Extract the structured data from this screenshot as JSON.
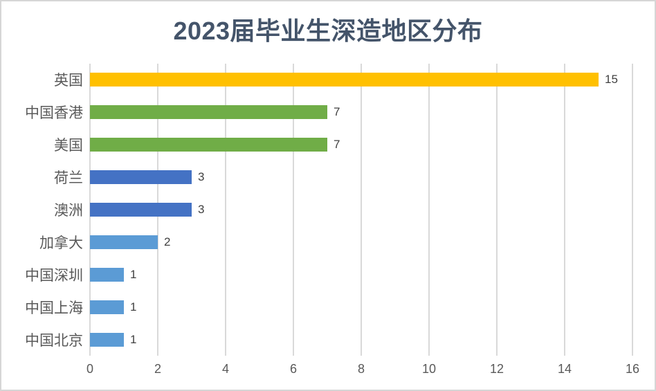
{
  "chart_data": {
    "type": "bar",
    "orientation": "horizontal",
    "title": "2023届毕业生深造地区分布",
    "categories": [
      "英国",
      "中国香港",
      "美国",
      "荷兰",
      "澳洲",
      "加拿大",
      "中国深圳",
      "中国上海",
      "中国北京"
    ],
    "values": [
      15,
      7,
      7,
      3,
      3,
      2,
      1,
      1,
      1
    ],
    "data_labels": [
      "15",
      "7",
      "7",
      "3",
      "3",
      "2",
      "1",
      "1",
      "1"
    ],
    "bar_colors": [
      "#FFC000",
      "#70AD47",
      "#70AD47",
      "#4472C4",
      "#4472C4",
      "#5B9BD5",
      "#5B9BD5",
      "#5B9BD5",
      "#5B9BD5"
    ],
    "x_ticks": [
      0,
      2,
      4,
      6,
      8,
      10,
      12,
      14,
      16
    ],
    "xlim": [
      0,
      16
    ],
    "xlabel": "",
    "ylabel": "",
    "grid": "vertical-only",
    "legend": "none"
  },
  "style": {
    "title_color": "#44546A",
    "axis_label_color": "#595959",
    "value_label_color": "#404040",
    "gridline_color": "#D9D9D9",
    "border_color": "#D6D6D6",
    "background": "#FFFFFF"
  }
}
